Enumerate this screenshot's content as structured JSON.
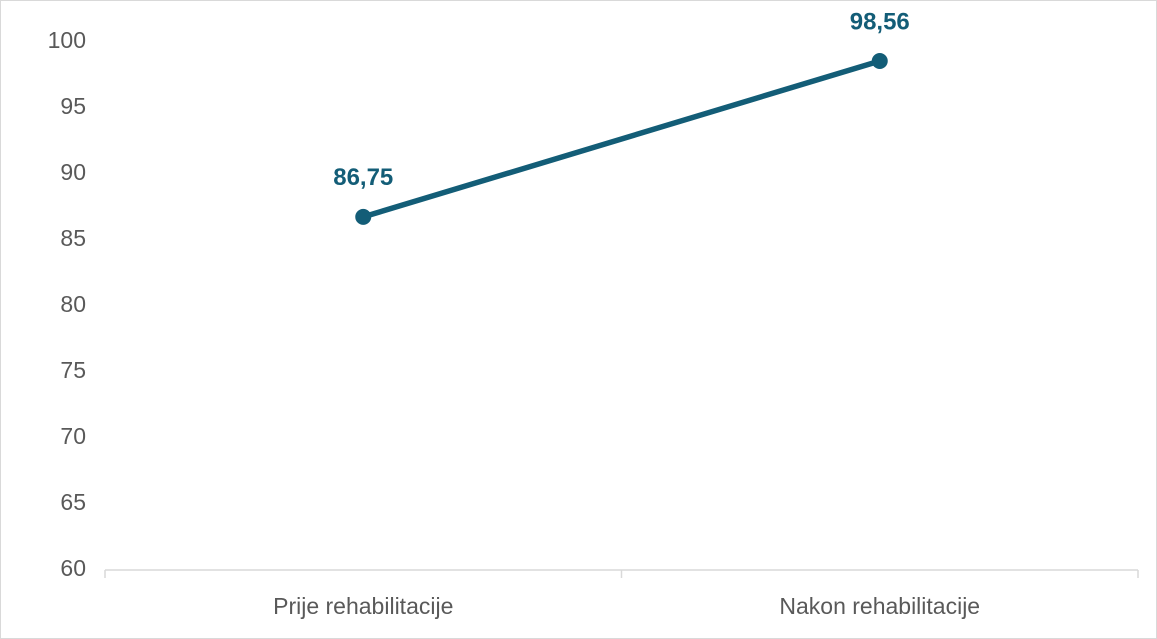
{
  "chart_data": {
    "type": "line",
    "categories": [
      "Prije rehabilitacije",
      "Nakon rehabilitacije"
    ],
    "values": [
      86.75,
      98.56
    ],
    "value_labels": [
      "86,75",
      "98,56"
    ],
    "color": "#135d77",
    "ylim": [
      60,
      100
    ],
    "yticks": [
      60,
      65,
      70,
      75,
      80,
      85,
      90,
      95,
      100
    ],
    "grid": false
  }
}
